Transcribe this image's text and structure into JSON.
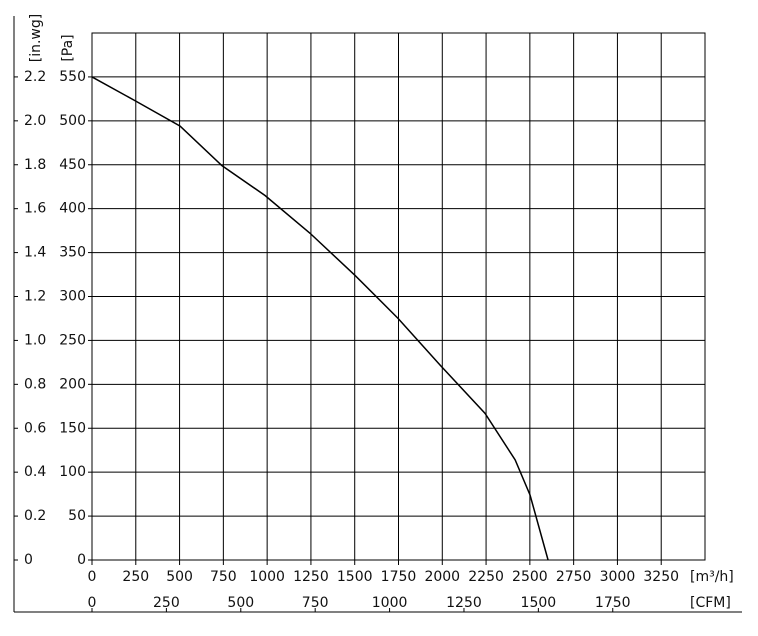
{
  "chart_data": {
    "type": "line",
    "x_label": "[m³/h]",
    "x2_label": "[CFM]",
    "y_label": "[Pa]",
    "y2_label": "[in.wg]",
    "x": [
      0,
      245,
      503,
      742,
      988,
      1245,
      1502,
      1748,
      1987,
      2244,
      2416,
      2501,
      2604
    ],
    "values": [
      550,
      523,
      494,
      449,
      415,
      372,
      324,
      275,
      222,
      167,
      114,
      74,
      0
    ],
    "color": "#000000",
    "xlim": [
      0,
      3500
    ],
    "xticks": [
      0,
      250,
      500,
      750,
      1000,
      1250,
      1500,
      1750,
      2000,
      2250,
      2500,
      2750,
      3000,
      3250
    ],
    "x2lim": [
      0,
      2060
    ],
    "x2ticks": [
      0,
      250,
      500,
      750,
      1000,
      1250,
      1500,
      1750
    ],
    "ylim": [
      0,
      600
    ],
    "yticks": [
      0,
      50,
      100,
      150,
      200,
      250,
      300,
      350,
      400,
      450,
      500,
      550
    ],
    "y2lim": [
      0,
      2.4
    ],
    "y2ticks": [
      0,
      0.2,
      0.4,
      0.6,
      0.8,
      {
        "value": 1,
        "label": "1.0"
      },
      1.2,
      1.4,
      1.6,
      1.8,
      {
        "value": 2,
        "label": "2.0"
      },
      2.2
    ],
    "grid": true
  }
}
